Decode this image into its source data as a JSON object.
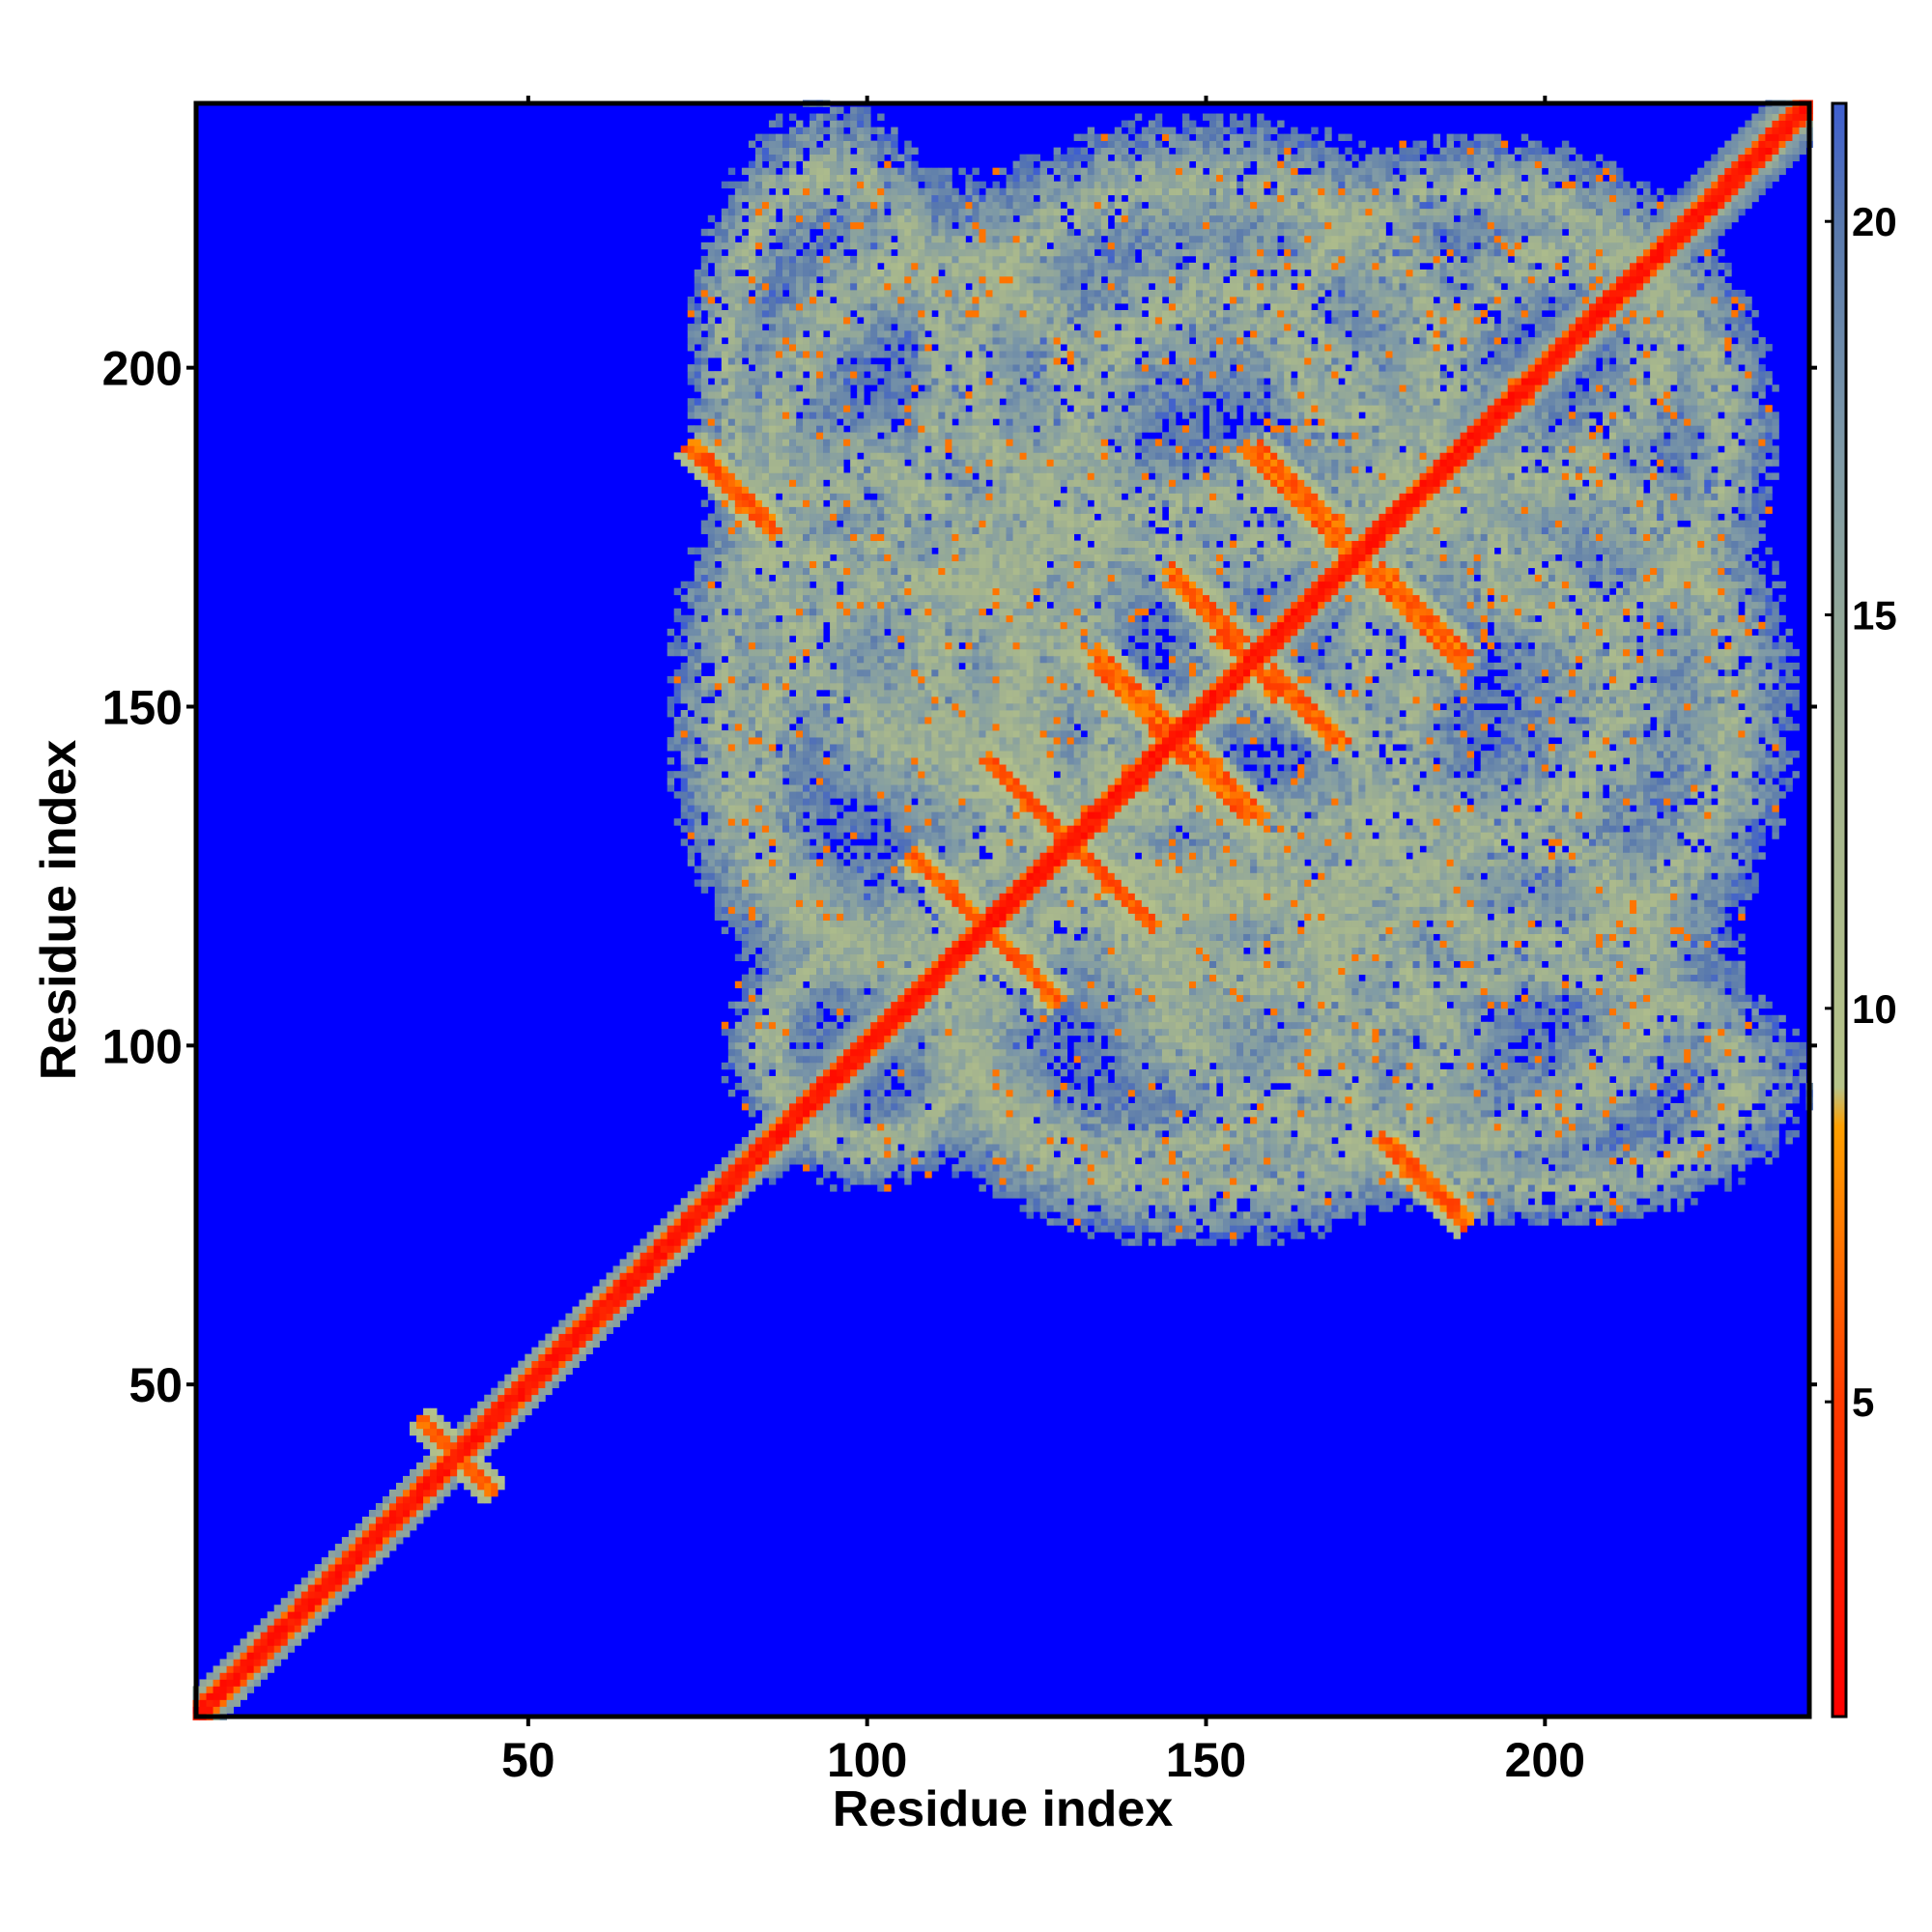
{
  "chart_data": {
    "type": "heatmap",
    "description_free": true,
    "xlabel": "Residue index",
    "ylabel": "Residue index",
    "x_range": [
      1,
      239
    ],
    "y_range": [
      1,
      239
    ],
    "x_ticks": [
      50,
      100,
      150,
      200
    ],
    "y_ticks": [
      50,
      100,
      150,
      200
    ],
    "colorbar": {
      "range": [
        1,
        21.5
      ],
      "ticks": [
        5,
        10,
        15,
        20
      ],
      "stops": [
        {
          "value": 1,
          "color": "#ff0000"
        },
        {
          "value": 5,
          "color": "#ff3a00"
        },
        {
          "value": 8.5,
          "color": "#ffa000"
        },
        {
          "value": 9,
          "color": "#b7c48a"
        },
        {
          "value": 13,
          "color": "#a4b48e"
        },
        {
          "value": 17,
          "color": "#7f9aa6"
        },
        {
          "value": 20,
          "color": "#5878ad"
        },
        {
          "value": 21.5,
          "color": "#3f5fd0"
        }
      ],
      "background_color": "#0000ff"
    },
    "features": {
      "diagonal_band": {
        "from": 1,
        "to": 239,
        "core_value": 3.8,
        "halo_width": 4
      },
      "antiparallel_strands": [
        {
          "start": [
            75,
            188
          ],
          "end": [
            85,
            178
          ]
        },
        {
          "start": [
            156,
            188
          ],
          "end": [
            170,
            174
          ]
        },
        {
          "start": [
            176,
            170
          ],
          "end": [
            188,
            158
          ]
        },
        {
          "start": [
            145,
            170
          ],
          "end": [
            155,
            160
          ]
        },
        {
          "start": [
            152,
            160
          ],
          "end": [
            168,
            146
          ]
        },
        {
          "start": [
            134,
            158
          ],
          "end": [
            145,
            147
          ]
        },
        {
          "start": [
            143,
            146
          ],
          "end": [
            156,
            134
          ]
        },
        {
          "start": [
            118,
            142
          ],
          "end": [
            130,
            130
          ]
        },
        {
          "start": [
            130,
            130
          ],
          "end": [
            142,
            118
          ]
        },
        {
          "start": [
            107,
            128
          ],
          "end": [
            118,
            117
          ]
        },
        {
          "start": [
            117,
            118
          ],
          "end": [
            127,
            107
          ]
        },
        {
          "start": [
            176,
            86
          ],
          "end": [
            188,
            74
          ]
        },
        {
          "start": [
            34,
            45
          ],
          "end": [
            43,
            36
          ]
        }
      ],
      "contact_clusters": [
        {
          "cx": 110,
          "cy": 180,
          "rx": 34,
          "ry": 50
        },
        {
          "cx": 152,
          "cy": 160,
          "rx": 40,
          "ry": 70
        },
        {
          "cx": 190,
          "cy": 205,
          "rx": 38,
          "ry": 30
        },
        {
          "cx": 200,
          "cy": 150,
          "rx": 38,
          "ry": 48
        },
        {
          "cx": 110,
          "cy": 140,
          "rx": 36,
          "ry": 40
        },
        {
          "cx": 150,
          "cy": 100,
          "rx": 48,
          "ry": 30
        },
        {
          "cx": 200,
          "cy": 95,
          "rx": 40,
          "ry": 22
        },
        {
          "cx": 160,
          "cy": 130,
          "rx": 30,
          "ry": 30
        },
        {
          "cx": 100,
          "cy": 100,
          "rx": 22,
          "ry": 18
        }
      ]
    }
  }
}
